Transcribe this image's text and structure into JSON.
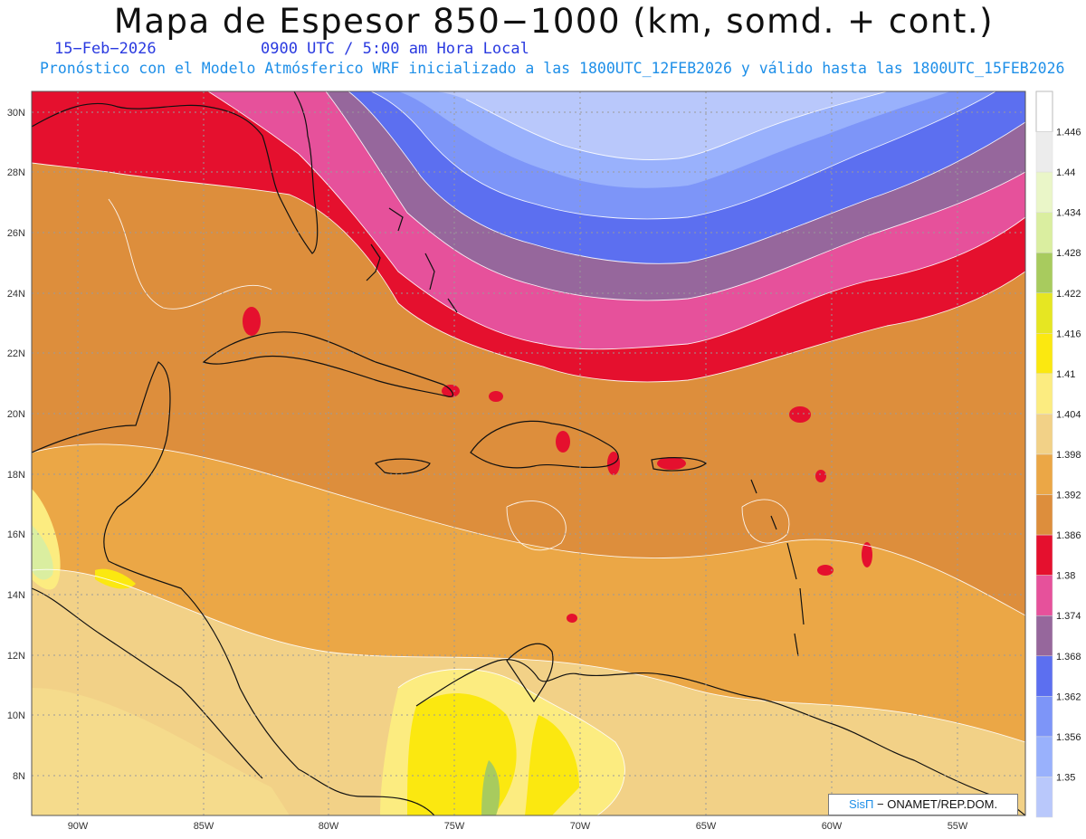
{
  "header": {
    "title": "Mapa de Espesor 850−1000 (km, somd. + cont.)",
    "date": "15−Feb−2026",
    "time": "0900 UTC / 5:00 am Hora Local",
    "subtitle": "Pronóstico con el Modelo Atmósferico WRF inicializado a las 1800UTC_12FEB2026 y válido hasta las  1800UTC_15FEB2026"
  },
  "map": {
    "lat_labels": [
      "30N",
      "28N",
      "26N",
      "24N",
      "22N",
      "20N",
      "18N",
      "16N",
      "14N",
      "12N",
      "10N",
      "8N"
    ],
    "lon_labels": [
      "90W",
      "85W",
      "80W",
      "75W",
      "70W",
      "65W",
      "60W",
      "55W"
    ],
    "lat_range": [
      6.8,
      30.5
    ],
    "lon_range": [
      -92,
      -52.7
    ],
    "field": "Espesor 850−1000 hPa",
    "grid": "dotted"
  },
  "colorbar": {
    "labels": [
      "1.446",
      "1.44",
      "1.434",
      "1.428",
      "1.422",
      "1.416",
      "1.41",
      "1.404",
      "1.398",
      "1.392",
      "1.386",
      "1.38",
      "1.374",
      "1.368",
      "1.362",
      "1.356",
      "1.35"
    ],
    "colors": [
      "#ececec",
      "#eaf6c8",
      "#daeea0",
      "#a8cb5e",
      "#e6e622",
      "#fbe810",
      "#fcec80",
      "#f2d187",
      "#eba746",
      "#dd8e3c",
      "#e5102e",
      "#e6519b",
      "#96679c",
      "#5c6ff0",
      "#7d95f8",
      "#99b1fc",
      "#b9c8fb"
    ]
  },
  "credit": {
    "brand": "SisΠ",
    "text": "− ONAMET/REP.DOM."
  }
}
